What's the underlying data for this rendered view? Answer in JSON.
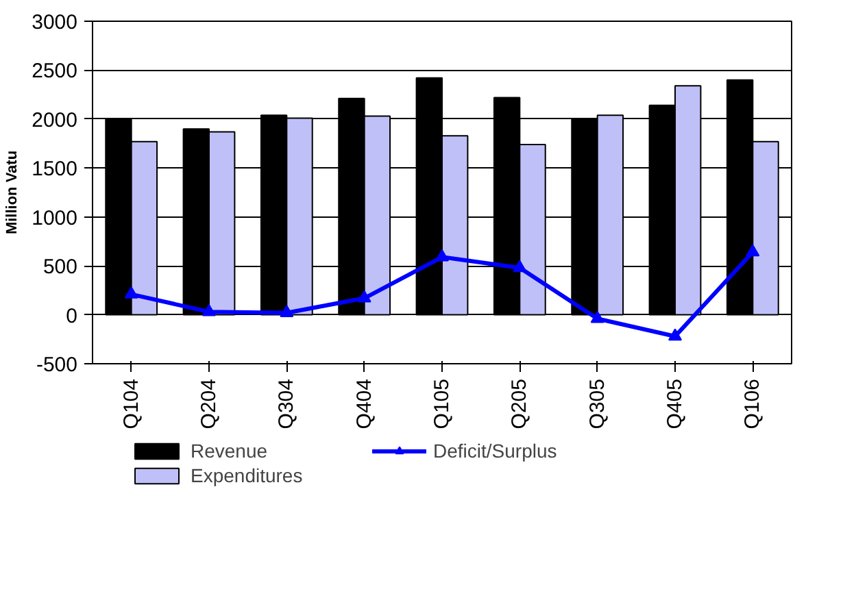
{
  "chart_data": {
    "type": "bar",
    "ylabel": "Million Vatu",
    "categories": [
      "Q104",
      "Q204",
      "Q304",
      "Q404",
      "Q105",
      "Q205",
      "Q305",
      "Q405",
      "Q106"
    ],
    "series": [
      {
        "name": "Revenue",
        "color": "#000000",
        "values": [
          2000,
          1900,
          2040,
          2210,
          2420,
          2220,
          2000,
          2140,
          2400
        ]
      },
      {
        "name": "Expenditures",
        "color": "#c0c0f8",
        "values": [
          1770,
          1870,
          2010,
          2030,
          1830,
          1740,
          2040,
          2340,
          1770
        ]
      },
      {
        "name": "Deficit/Surplus",
        "type": "line",
        "color": "#0000ff",
        "marker": "triangle",
        "values": [
          210,
          30,
          20,
          170,
          590,
          480,
          -40,
          -220,
          640
        ]
      }
    ],
    "ylim": [
      -500,
      3000
    ],
    "yticks": [
      -500,
      0,
      500,
      1000,
      1500,
      2000,
      2500,
      3000
    ],
    "grid": "y",
    "legend": "bottom"
  }
}
